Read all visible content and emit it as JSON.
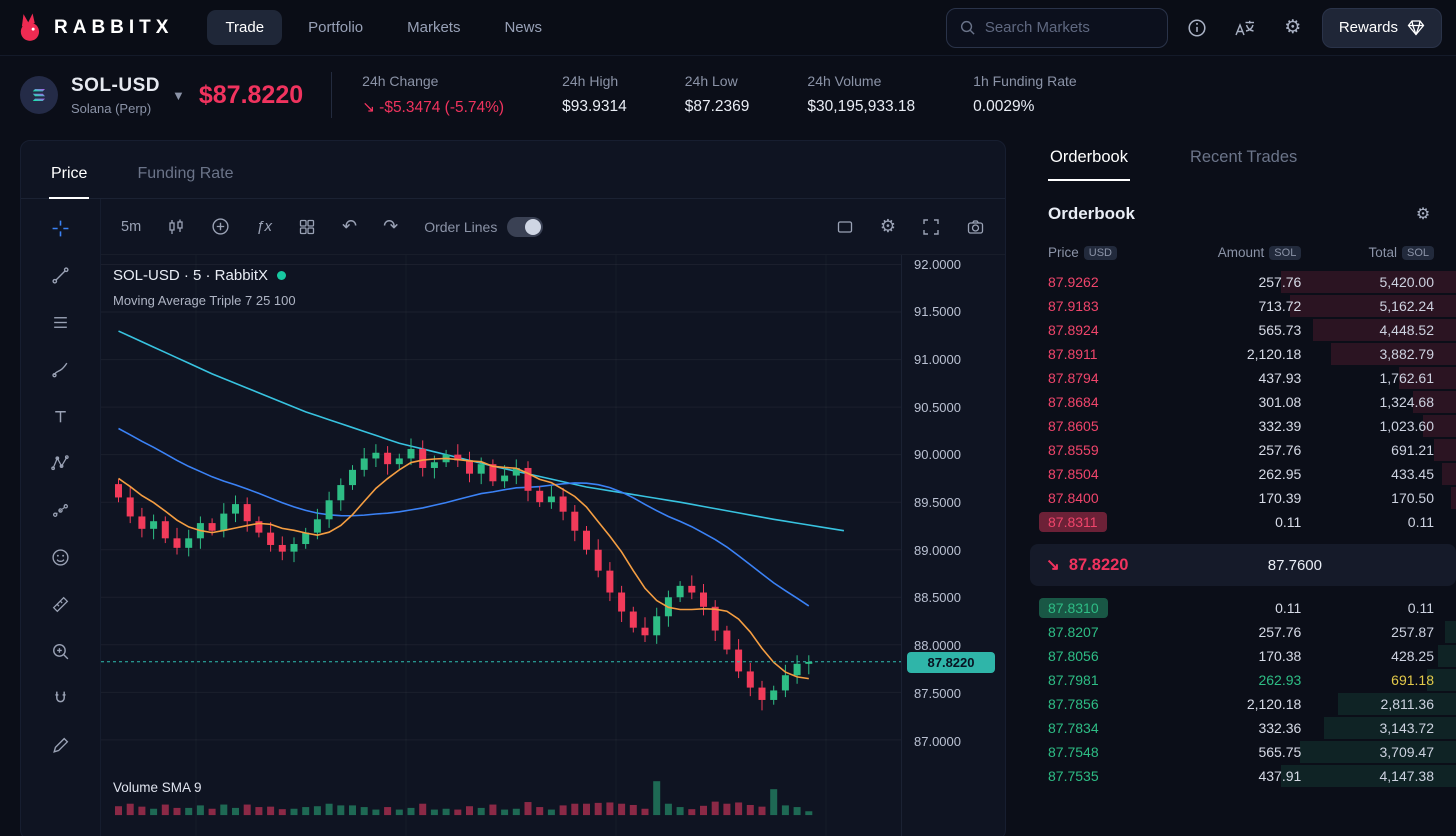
{
  "navbar": {
    "brand": "RABBITX",
    "items": [
      {
        "label": "Trade",
        "active": true
      },
      {
        "label": "Portfolio",
        "active": false
      },
      {
        "label": "Markets",
        "active": false
      },
      {
        "label": "News",
        "active": false
      }
    ],
    "search_placeholder": "Search Markets",
    "rewards_label": "Rewards"
  },
  "market_header": {
    "symbol": "SOL-USD",
    "subtitle": "Solana (Perp)",
    "price": "$87.8220",
    "stats": [
      {
        "label": "24h Change",
        "value": "-$5.3474 (-5.74%)",
        "negative": true,
        "arrow": true
      },
      {
        "label": "24h High",
        "value": "$93.9314"
      },
      {
        "label": "24h Low",
        "value": "$87.2369"
      },
      {
        "label": "24h Volume",
        "value": "$30,195,933.18"
      },
      {
        "label": "1h Funding Rate",
        "value": "0.0029%"
      }
    ]
  },
  "chart_panel": {
    "tabs": [
      {
        "label": "Price",
        "active": true
      },
      {
        "label": "Funding Rate",
        "active": false
      }
    ],
    "toolbar": {
      "timeframe": "5m",
      "fx": "ƒx",
      "order_lines_label": "Order Lines"
    },
    "legend": {
      "title": "SOL-USD · 5 · RabbitX",
      "indicator": "Moving Average Triple 7 25 100",
      "volume_label": "Volume SMA 9"
    },
    "current_price_label": "87.8220",
    "axis_ticks": [
      "92.0000",
      "91.5000",
      "91.0000",
      "90.5000",
      "90.0000",
      "89.5000",
      "89.0000",
      "88.5000",
      "88.0000",
      "87.5000",
      "87.0000"
    ]
  },
  "chart_data": {
    "type": "candlestick",
    "current_price": 87.822,
    "closes": [
      89.55,
      89.35,
      89.22,
      89.3,
      89.12,
      89.02,
      89.12,
      89.28,
      89.2,
      89.38,
      89.48,
      89.3,
      89.18,
      89.05,
      88.98,
      89.06,
      89.18,
      89.32,
      89.52,
      89.68,
      89.84,
      89.96,
      90.02,
      89.9,
      89.96,
      90.06,
      89.86,
      89.92,
      90.0,
      89.94,
      89.8,
      89.9,
      89.72,
      89.78,
      89.86,
      89.62,
      89.5,
      89.56,
      89.4,
      89.2,
      89.0,
      88.78,
      88.55,
      88.35,
      88.18,
      88.1,
      88.3,
      88.5,
      88.62,
      88.55,
      88.4,
      88.15,
      87.95,
      87.72,
      87.55,
      87.42,
      87.52,
      87.68,
      87.8,
      87.82
    ],
    "ma100": [
      [
        0,
        91.3
      ],
      [
        8,
        90.85
      ],
      [
        16,
        90.45
      ],
      [
        24,
        90.12
      ],
      [
        32,
        89.88
      ],
      [
        40,
        89.66
      ],
      [
        48,
        89.5
      ],
      [
        56,
        89.32
      ],
      [
        63,
        89.18
      ]
    ],
    "volume_spikes": [
      {
        "index": 46,
        "height": 34
      },
      {
        "index": 56,
        "height": 26
      }
    ],
    "price_axis": {
      "min": 87.0,
      "max": 92.0
    }
  },
  "orderbook": {
    "tabs": [
      {
        "label": "Orderbook",
        "active": true
      },
      {
        "label": "Recent Trades",
        "active": false
      }
    ],
    "title": "Orderbook",
    "columns": [
      {
        "label": "Price",
        "unit": "USD"
      },
      {
        "label": "Amount",
        "unit": "SOL"
      },
      {
        "label": "Total",
        "unit": "SOL"
      }
    ],
    "asks": [
      {
        "price": "87.9262",
        "amount": "257.76",
        "total": "5,420.00"
      },
      {
        "price": "87.9183",
        "amount": "713.72",
        "total": "5,162.24"
      },
      {
        "price": "87.8924",
        "amount": "565.73",
        "total": "4,448.52"
      },
      {
        "price": "87.8911",
        "amount": "2,120.18",
        "total": "3,882.79"
      },
      {
        "price": "87.8794",
        "amount": "437.93",
        "total": "1,762.61"
      },
      {
        "price": "87.8684",
        "amount": "301.08",
        "total": "1,324.68"
      },
      {
        "price": "87.8605",
        "amount": "332.39",
        "total": "1,023.60"
      },
      {
        "price": "87.8559",
        "amount": "257.76",
        "total": "691.21"
      },
      {
        "price": "87.8504",
        "amount": "262.95",
        "total": "433.45"
      },
      {
        "price": "87.8400",
        "amount": "170.39",
        "total": "170.50"
      },
      {
        "price": "87.8311",
        "amount": "0.11",
        "total": "0.11",
        "highlight": true
      }
    ],
    "bids": [
      {
        "price": "87.8310",
        "amount": "0.11",
        "total": "0.11",
        "highlight": true
      },
      {
        "price": "87.8207",
        "amount": "257.76",
        "total": "257.87"
      },
      {
        "price": "87.8056",
        "amount": "170.38",
        "total": "428.25"
      },
      {
        "price": "87.7981",
        "amount": "262.93",
        "total": "691.18",
        "amount_hl": "green",
        "total_hl": "yellow"
      },
      {
        "price": "87.7856",
        "amount": "2,120.18",
        "total": "2,811.36"
      },
      {
        "price": "87.7834",
        "amount": "332.36",
        "total": "3,143.72"
      },
      {
        "price": "87.7548",
        "amount": "565.75",
        "total": "3,709.47"
      },
      {
        "price": "87.7535",
        "amount": "437.91",
        "total": "4,147.38"
      }
    ],
    "mid": {
      "last": "87.8220",
      "mark": "87.7600"
    }
  }
}
